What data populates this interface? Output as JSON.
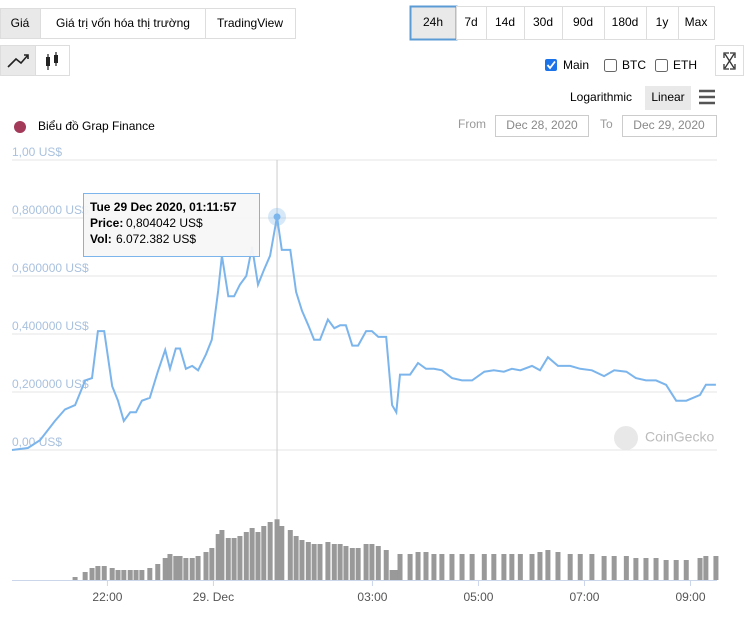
{
  "tabs": [
    "Giá",
    "Giá trị vốn hóa thị trường",
    "TradingView"
  ],
  "ranges": [
    "24h",
    "7d",
    "14d",
    "30d",
    "90d",
    "180d",
    "1y",
    "Max"
  ],
  "checks": [
    "Main",
    "BTC",
    "ETH"
  ],
  "scales": [
    "Logarithmic",
    "Linear"
  ],
  "chart_name": "Biểu đồ Grap Finance",
  "from_label": "From",
  "from": "Dec 28, 2020",
  "to_label": "To",
  "to": "Dec 29, 2020",
  "watermark": "CoinGecko",
  "chart_data": {
    "type": "line",
    "x": [
      20.2,
      20.5,
      20.73,
      21.01,
      21.2,
      21.39,
      21.58,
      21.71,
      21.82,
      21.94,
      22.09,
      22.2,
      22.31,
      22.43,
      22.54,
      22.65,
      22.8,
      22.95,
      23.09,
      23.18,
      23.29,
      23.37,
      23.48,
      23.6,
      23.71,
      23.86,
      23.97,
      24.09,
      24.16,
      24.28,
      24.39,
      24.5,
      24.62,
      24.73,
      24.84,
      24.95,
      25.07,
      25.2,
      25.29,
      25.45,
      25.56,
      25.67,
      25.79,
      25.9,
      26.01,
      26.16,
      26.28,
      26.39,
      26.5,
      26.62,
      26.73,
      26.88,
      26.99,
      27.11,
      27.26,
      27.37,
      27.45,
      27.52,
      27.71,
      27.86,
      28.01,
      28.16,
      28.31,
      28.5,
      28.69,
      28.88,
      29.11,
      29.29,
      29.48,
      29.63,
      29.79,
      30.01,
      30.16,
      30.31,
      30.5,
      30.73,
      30.92,
      31.14,
      31.37,
      31.56,
      31.79,
      31.97,
      32.16,
      32.35,
      32.54,
      32.73,
      32.92,
      33.18,
      33.29,
      33.48
    ],
    "series": [
      {
        "name": "Price",
        "color": "#7cb5ec",
        "values": [
          0,
          0.007,
          0.034,
          0.1,
          0.14,
          0.155,
          0.24,
          0.248,
          0.41,
          0.41,
          0.22,
          0.17,
          0.1,
          0.13,
          0.13,
          0.17,
          0.18,
          0.27,
          0.345,
          0.28,
          0.35,
          0.35,
          0.28,
          0.29,
          0.275,
          0.33,
          0.38,
          0.55,
          0.67,
          0.53,
          0.53,
          0.57,
          0.6,
          0.7,
          0.57,
          0.62,
          0.67,
          0.804042,
          0.69,
          0.69,
          0.545,
          0.48,
          0.43,
          0.38,
          0.38,
          0.45,
          0.42,
          0.43,
          0.43,
          0.36,
          0.36,
          0.41,
          0.41,
          0.39,
          0.39,
          0.155,
          0.13,
          0.26,
          0.26,
          0.3,
          0.28,
          0.28,
          0.275,
          0.248,
          0.24,
          0.24,
          0.27,
          0.275,
          0.27,
          0.28,
          0.275,
          0.29,
          0.275,
          0.32,
          0.29,
          0.29,
          0.28,
          0.275,
          0.255,
          0.275,
          0.27,
          0.248,
          0.24,
          0.24,
          0.225,
          0.17,
          0.17,
          0.19,
          0.225,
          0.225
        ]
      },
      {
        "name": "Vol",
        "color": "#999999",
        "axis": "y2",
        "values": [
          0,
          0,
          0,
          0,
          0,
          300000,
          800000,
          1200000,
          1400000,
          1400000,
          1200000,
          1000000,
          1000000,
          1000000,
          1000000,
          1000000,
          1200000,
          1600000,
          2200000,
          2600000,
          2400000,
          2400000,
          2200000,
          2200000,
          2400000,
          2800000,
          3200000,
          4600000,
          5000000,
          4200000,
          4200000,
          4400000,
          4800000,
          5200000,
          4800000,
          5400000,
          5800000,
          6072382,
          5400000,
          5000000,
          4400000,
          4000000,
          3800000,
          3600000,
          3600000,
          3800000,
          3600000,
          3600000,
          3400000,
          3200000,
          3200000,
          3600000,
          3600000,
          3400000,
          3000000,
          1000000,
          1000000,
          2600000,
          2600000,
          2800000,
          2800000,
          2600000,
          2600000,
          2600000,
          2600000,
          2600000,
          2600000,
          2600000,
          2600000,
          2600000,
          2600000,
          2600000,
          2800000,
          3000000,
          2800000,
          2600000,
          2600000,
          2600000,
          2400000,
          2400000,
          2400000,
          2200000,
          2200000,
          2200000,
          2000000,
          2000000,
          2000000,
          2200000,
          2400000,
          2400000
        ]
      }
    ],
    "xlim": [
      20.2,
      33.5
    ],
    "xticks": [
      {
        "value": 22,
        "label": "22:00"
      },
      {
        "value": 24,
        "label": "29. Dec"
      },
      {
        "value": 27,
        "label": "03:00"
      },
      {
        "value": 29,
        "label": "05:00"
      },
      {
        "value": 31,
        "label": "07:00"
      },
      {
        "value": 33,
        "label": "09:00"
      }
    ],
    "ylim": [
      0,
      1
    ],
    "yticks": [
      {
        "value": 0,
        "label": "0,00 US$"
      },
      {
        "value": 0.2,
        "label": "0,200000 US$"
      },
      {
        "value": 0.4,
        "label": "0,400000 US$"
      },
      {
        "value": 0.6,
        "label": "0,600000 US$"
      },
      {
        "value": 0.8,
        "label": "0,800000 US$"
      },
      {
        "value": 1,
        "label": "1,00 US$"
      }
    ],
    "y2lim": [
      0,
      9500000
    ],
    "grid": true,
    "tooltip": {
      "title": "Tue 29 Dec 2020, 01:11:57",
      "price_label": "Price:",
      "price": "0,804042 US$",
      "vol_label": "Vol:",
      "vol": "6.072.382 US$",
      "index": 37
    }
  }
}
